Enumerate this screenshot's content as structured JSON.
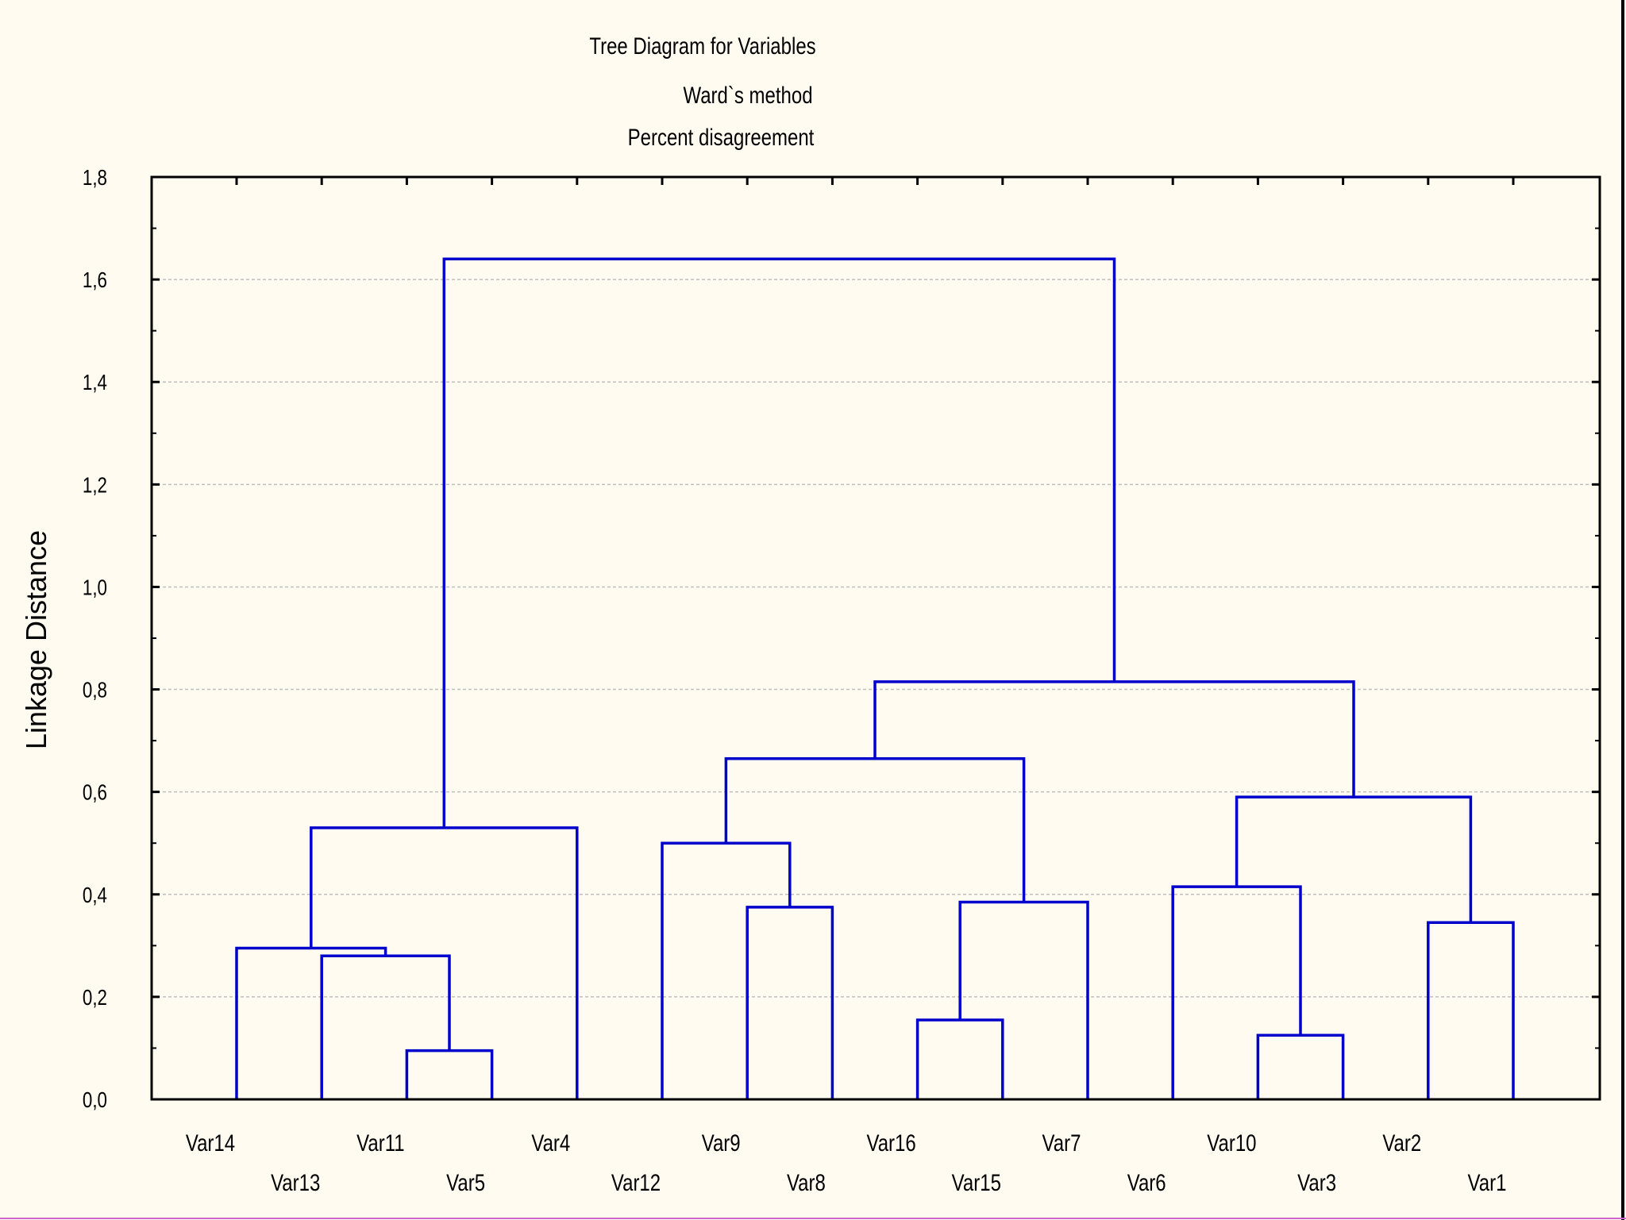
{
  "chart_data": {
    "type": "dendrogram",
    "title_lines": [
      "Tree Diagram for  Variables",
      "Ward`s method",
      "Percent disagreement"
    ],
    "ylabel": "Linkage Distance",
    "xlabel": "",
    "ylim": [
      0.0,
      1.8
    ],
    "yticks": [
      "0,0",
      "0,2",
      "0,4",
      "0,6",
      "0,8",
      "1,0",
      "1,2",
      "1,4",
      "1,6",
      "1,8"
    ],
    "grid": true,
    "leaves": [
      "Var14",
      "Var13",
      "Var11",
      "Var5",
      "Var4",
      "Var12",
      "Var9",
      "Var8",
      "Var16",
      "Var15",
      "Var7",
      "Var6",
      "Var10",
      "Var3",
      "Var2",
      "Var1"
    ],
    "merges": [
      {
        "a": "Var11",
        "b": "Var5",
        "height": 0.095
      },
      {
        "a": "Var16",
        "b": "Var15",
        "height": 0.155
      },
      {
        "a": "Var10",
        "b": "Var3",
        "height": 0.125
      },
      {
        "a": "Var13",
        "b": "Var11+Var5",
        "height": 0.28
      },
      {
        "a": "Var14",
        "b": "Var13+Var11+Var5",
        "height": 0.295
      },
      {
        "a": "Var2",
        "b": "Var1",
        "height": 0.345
      },
      {
        "a": "Var9",
        "b": "Var8",
        "height": 0.375
      },
      {
        "a": "Var16+Var15",
        "b": "Var7",
        "height": 0.385
      },
      {
        "a": "Var6",
        "b": "Var10+Var3",
        "height": 0.415
      },
      {
        "a": "Var12",
        "b": "Var9+Var8",
        "height": 0.5
      },
      {
        "a": "Var14+Var13+Var11+Var5",
        "b": "Var4",
        "height": 0.53
      },
      {
        "a": "Var6+Var10+Var3",
        "b": "Var2+Var1",
        "height": 0.59
      },
      {
        "a": "Var12+Var9+Var8",
        "b": "Var16+Var15+Var7",
        "height": 0.665
      },
      {
        "a": "Var12+Var9+Var8+Var16+Var15+Var7",
        "b": "Var6+Var10+Var3+Var2+Var1",
        "height": 0.815
      },
      {
        "a": "Var14+Var13+Var11+Var5+Var4",
        "b": "Var12+Var9+Var8+Var16+Var15+Var7+Var6+Var10+Var3+Var2+Var1",
        "height": 1.64
      }
    ],
    "colors": {
      "tree": "#0000cc",
      "grid": "#bfbfbf",
      "axis": "#000000",
      "background": "#fffbf0"
    }
  }
}
